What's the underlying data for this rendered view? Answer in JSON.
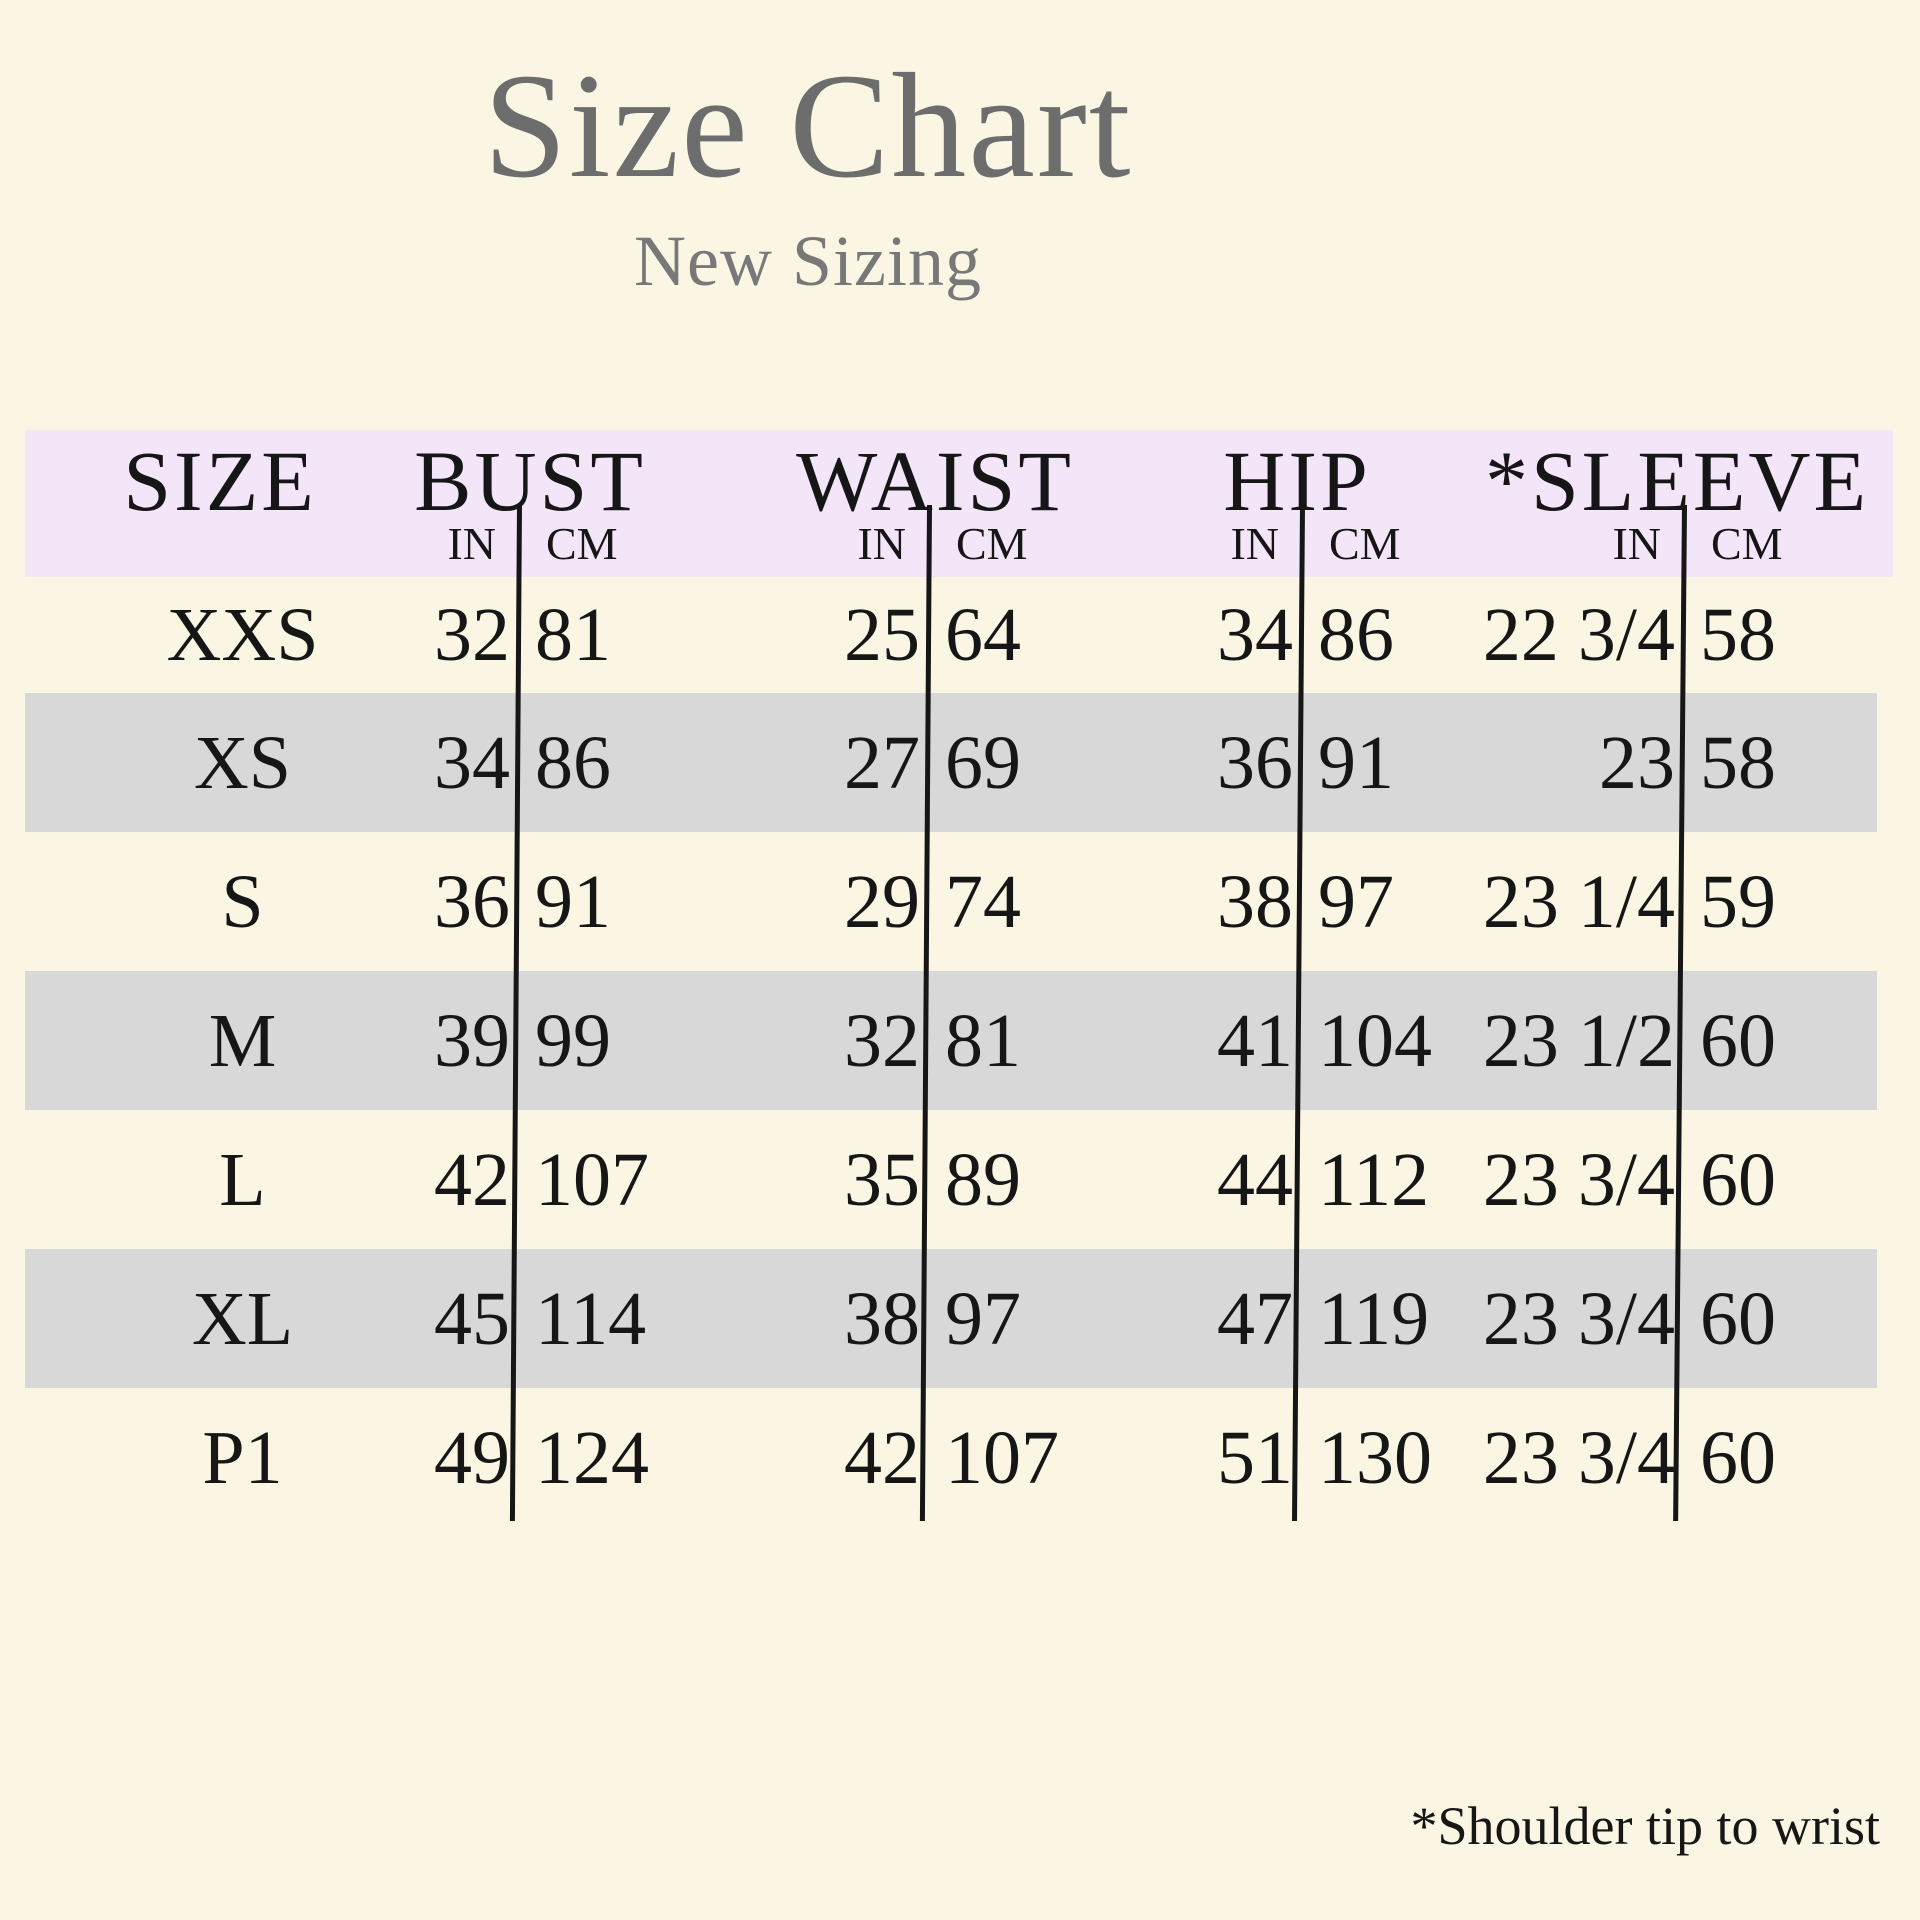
{
  "page": {
    "title": "Size Chart",
    "subtitle": "New Sizing",
    "footnote": "*Shoulder tip to wrist"
  },
  "colors": {
    "background": "#fbf6e4",
    "header_band": "#f3e6f8",
    "row_shade": "#d8d8d8",
    "title_text": "#6d6d6d",
    "subtitle_text": "#787878",
    "body_text": "#161616"
  },
  "chart_data": {
    "type": "table",
    "title": "Size Chart",
    "subtitle": "New Sizing",
    "columns": [
      "SIZE",
      "BUST",
      "WAIST",
      "HIP",
      "*SLEEVE"
    ],
    "units": [
      "IN",
      "CM"
    ],
    "row_fields": [
      "size",
      "bust_in",
      "bust_cm",
      "waist_in",
      "waist_cm",
      "hip_in",
      "hip_cm",
      "sleeve_in",
      "sleeve_cm"
    ],
    "rows": [
      [
        "XXS",
        "32",
        "81",
        "25",
        "64",
        "34",
        "86",
        "22 3/4",
        "58"
      ],
      [
        "XS",
        "34",
        "86",
        "27",
        "69",
        "36",
        "91",
        "23",
        "58"
      ],
      [
        "S",
        "36",
        "91",
        "29",
        "74",
        "38",
        "97",
        "23 1/4",
        "59"
      ],
      [
        "M",
        "39",
        "99",
        "32",
        "81",
        "41",
        "104",
        "23 1/2",
        "60"
      ],
      [
        "L",
        "42",
        "107",
        "35",
        "89",
        "44",
        "112",
        "23 3/4",
        "60"
      ],
      [
        "XL",
        "45",
        "114",
        "38",
        "97",
        "47",
        "119",
        "23 3/4",
        "60"
      ],
      [
        "P1",
        "49",
        "124",
        "42",
        "107",
        "51",
        "130",
        "23 3/4",
        "60"
      ]
    ],
    "shaded_rows": [
      "XS",
      "M",
      "XL"
    ],
    "footnote": "*Shoulder tip to wrist",
    "layout_hints": {
      "shading_style": "alternating gray bands",
      "dividers": "one vertical black line between IN and CM of each measurement group"
    }
  }
}
